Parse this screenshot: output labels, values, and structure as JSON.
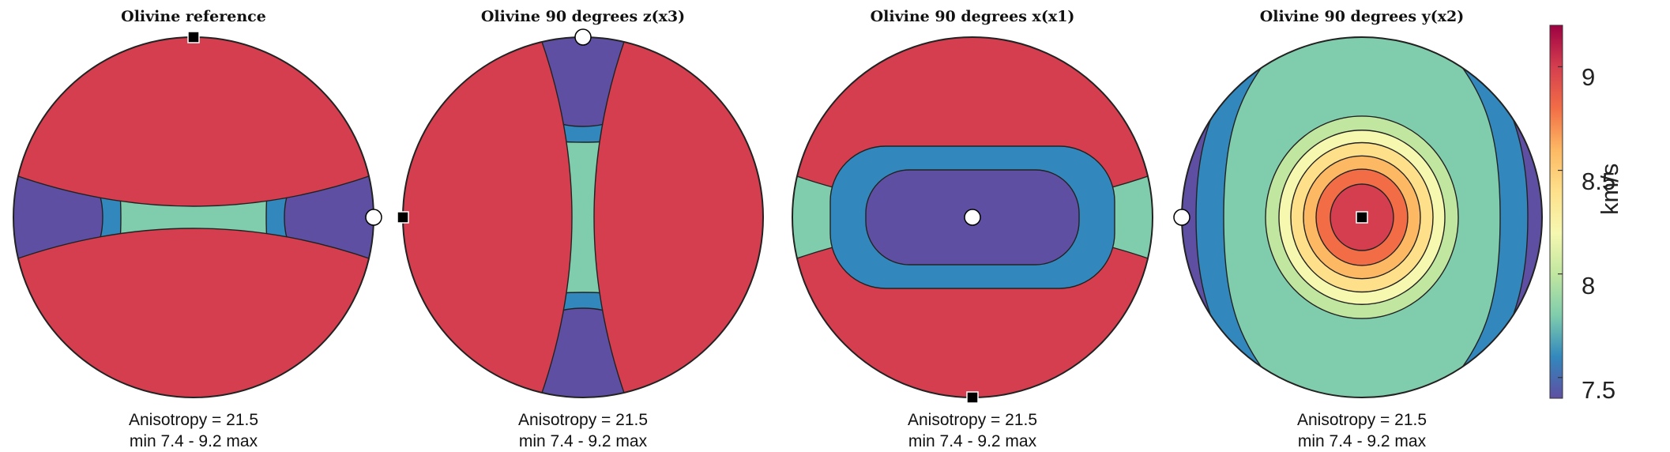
{
  "chart_data": {
    "type": "heatmap",
    "subtype": "stereographic pole figure",
    "colormap": "Spectral (reversed)",
    "colorbar": {
      "label": "km/s",
      "range": [
        7.4,
        9.2
      ],
      "ticks": [
        7.5,
        8,
        8.5,
        9
      ],
      "tick_labels": [
        "7.5",
        "8",
        "8.5",
        "9"
      ]
    },
    "contour_levels": 10,
    "panels": [
      {
        "title": "Olivine reference",
        "anisotropy_text": "Anisotropy = 21.5",
        "minmax_text": "min 7.4 - 9.2 max",
        "anisotropy": 21.5,
        "min": 7.4,
        "max": 9.2,
        "fast_axis": "north-south (perimeter)",
        "slow_axis": "east-west",
        "max_marker": "top",
        "min_marker": "right"
      },
      {
        "title": "Olivine 90 degrees z(x3)",
        "anisotropy_text": "Anisotropy = 21.5",
        "minmax_text": "min 7.4 - 9.2 max",
        "anisotropy": 21.5,
        "min": 7.4,
        "max": 9.2,
        "fast_axis": "east-west (perimeter)",
        "slow_axis": "north-south",
        "max_marker": "left",
        "min_marker": "top"
      },
      {
        "title": "Olivine 90 degrees x(x1)",
        "anisotropy_text": "Anisotropy = 21.5",
        "minmax_text": "min 7.4 - 9.2 max",
        "anisotropy": 21.5,
        "min": 7.4,
        "max": 9.2,
        "fast_axis": "north-south (perimeter)",
        "slow_axis": "center",
        "max_marker": "bottom",
        "min_marker": "center"
      },
      {
        "title": "Olivine 90 degrees y(x2)",
        "anisotropy_text": "Anisotropy = 21.5",
        "minmax_text": "min 7.4 - 9.2 max",
        "anisotropy": 21.5,
        "min": 7.4,
        "max": 9.2,
        "fast_axis": "center",
        "slow_axis": "east-west (perimeter)",
        "max_marker": "center",
        "min_marker": "left"
      }
    ],
    "colors": [
      "#5e4fa2",
      "#3288bd",
      "#7fcdac",
      "#c1e6a0",
      "#f6f8b0",
      "#fee08b",
      "#fdb863",
      "#f26d46",
      "#d53e4f",
      "#9e0142"
    ]
  }
}
